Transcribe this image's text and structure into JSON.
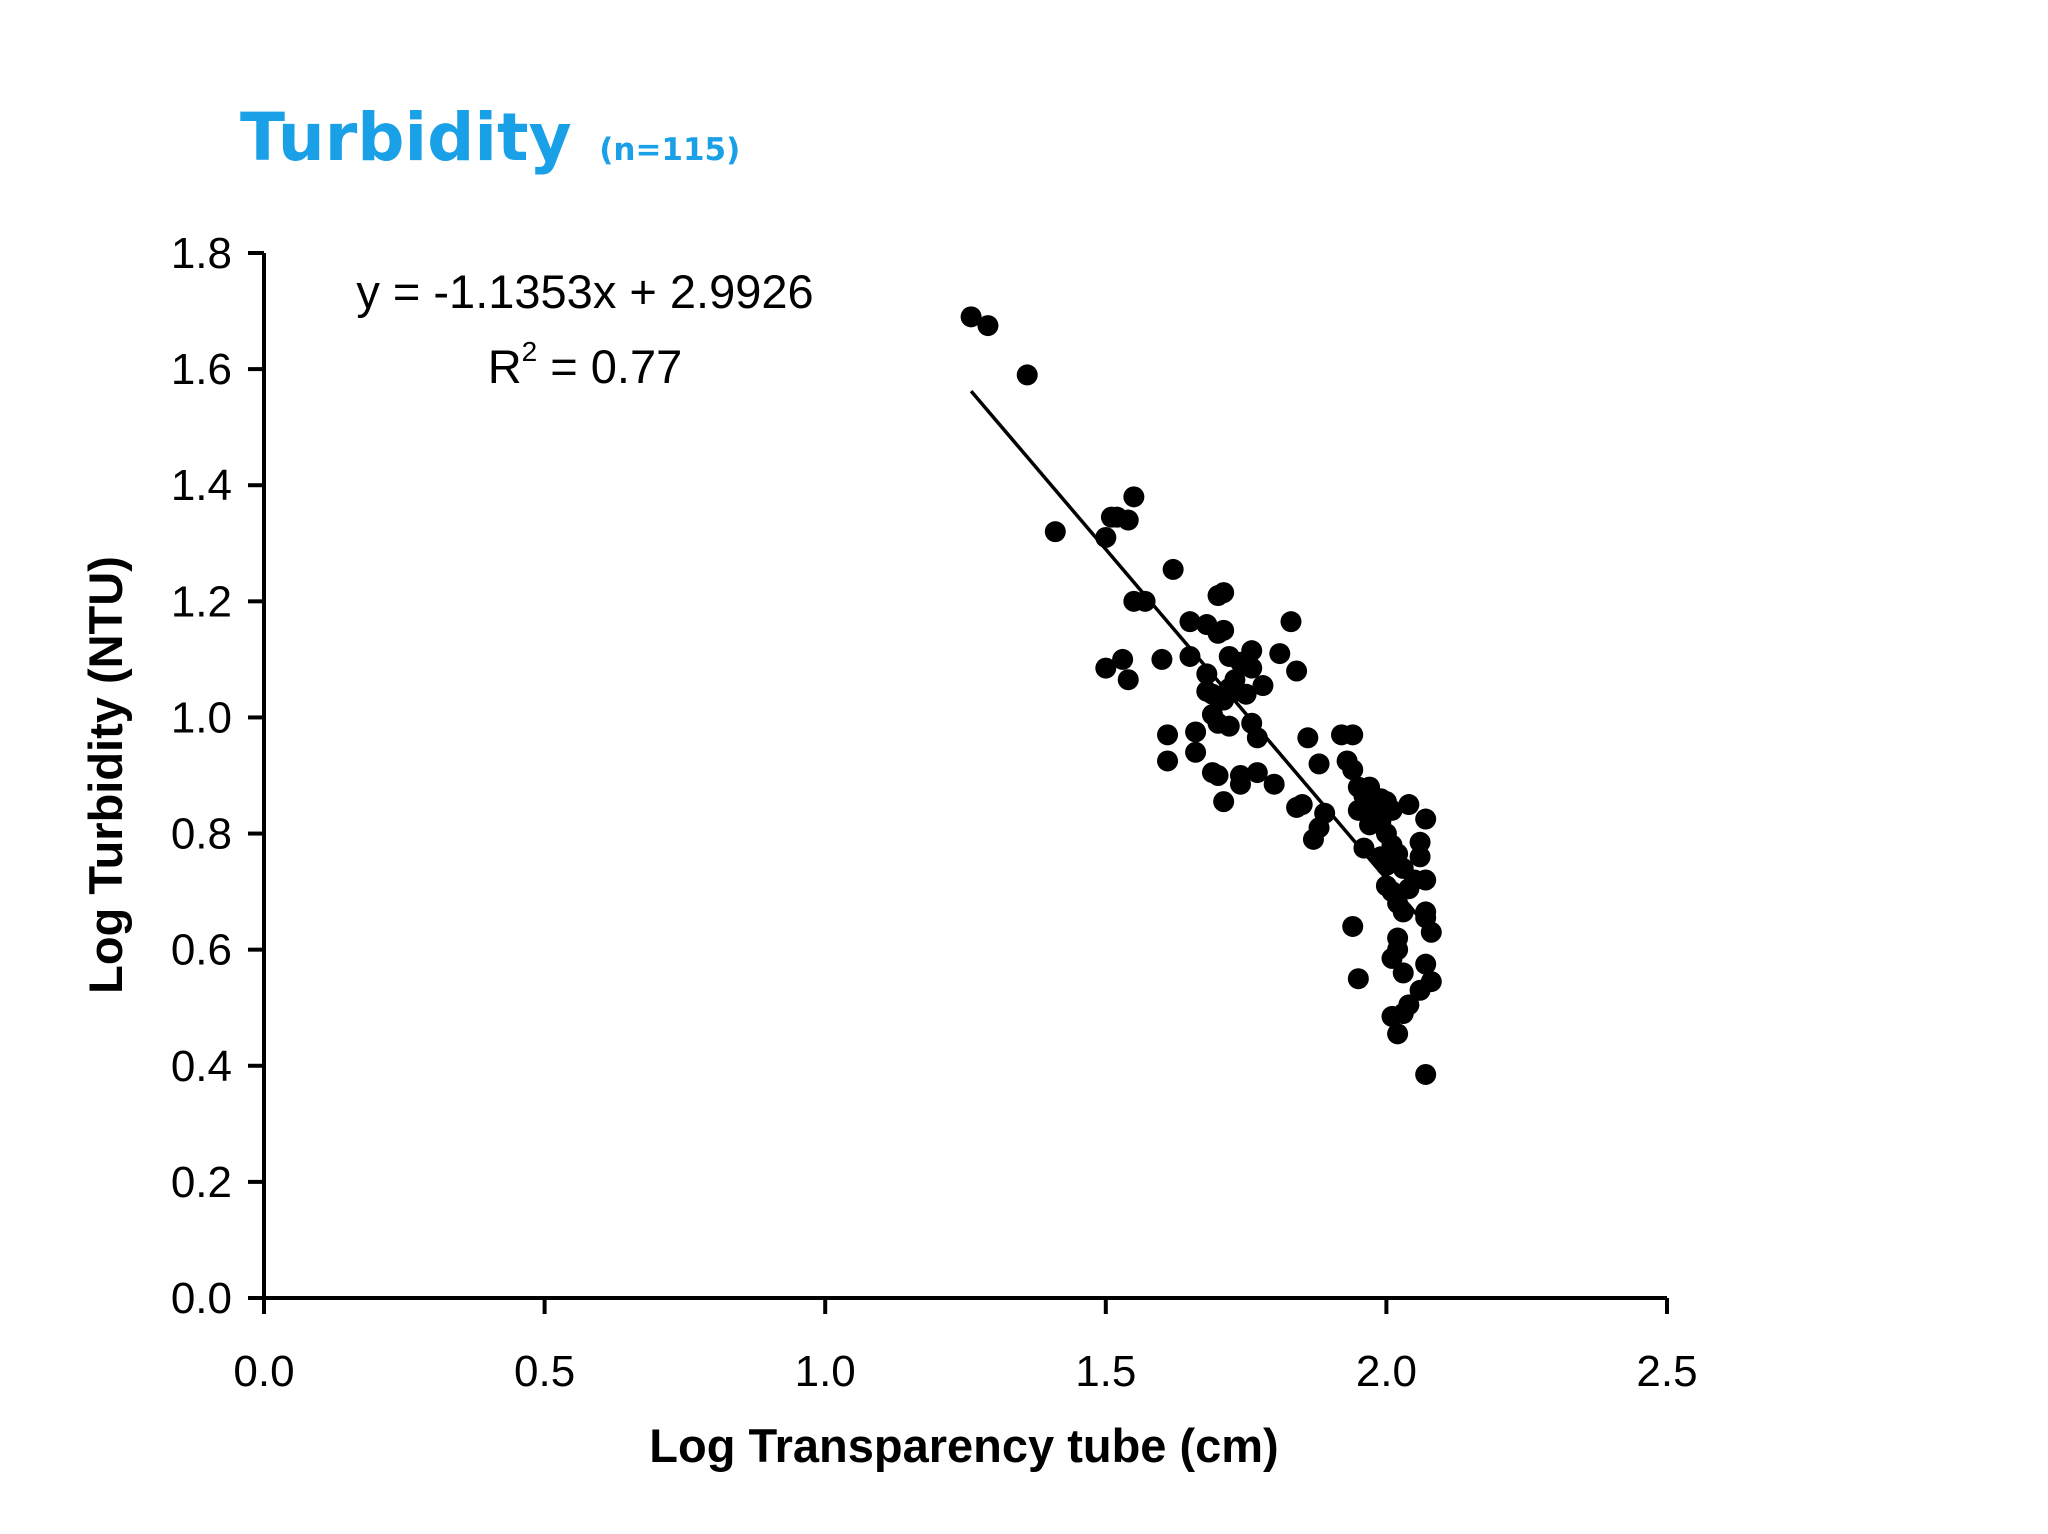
{
  "chart_data": {
    "type": "scatter",
    "title": "Turbidity",
    "subtitle": "(n=115)",
    "xlabel": "Log Transparency tube (cm)",
    "ylabel": "Log Turbidity (NTU)",
    "xlim": [
      0.0,
      2.5
    ],
    "ylim": [
      0.0,
      1.8
    ],
    "x_ticks": [
      "0.0",
      "0.5",
      "1.0",
      "1.5",
      "2.0",
      "2.5"
    ],
    "y_ticks": [
      "0.0",
      "0.2",
      "0.4",
      "0.6",
      "0.8",
      "1.0",
      "1.2",
      "1.4",
      "1.6",
      "1.8"
    ],
    "grid": false,
    "colors": {
      "title": "#1aa0e6",
      "points": "#000000"
    },
    "trendline": {
      "slope": -1.1353,
      "intercept": 2.9926,
      "x_range": [
        1.26,
        2.08
      ],
      "equation_text": "y = -1.1353x + 2.9926",
      "r2_prefix": "R",
      "r2_sup": "2",
      "r2_suffix": " = 0.77"
    },
    "points": [
      [
        1.26,
        1.69
      ],
      [
        1.29,
        1.675
      ],
      [
        1.36,
        1.59
      ],
      [
        1.41,
        1.32
      ],
      [
        1.5,
        1.31
      ],
      [
        1.51,
        1.345
      ],
      [
        1.52,
        1.345
      ],
      [
        1.54,
        1.34
      ],
      [
        1.55,
        1.38
      ],
      [
        1.55,
        1.2
      ],
      [
        1.57,
        1.2
      ],
      [
        1.62,
        1.255
      ],
      [
        1.5,
        1.085
      ],
      [
        1.53,
        1.1
      ],
      [
        1.54,
        1.065
      ],
      [
        1.6,
        1.1
      ],
      [
        1.61,
        0.97
      ],
      [
        1.61,
        0.925
      ],
      [
        1.65,
        1.165
      ],
      [
        1.65,
        1.105
      ],
      [
        1.66,
        0.975
      ],
      [
        1.66,
        0.94
      ],
      [
        1.68,
        1.16
      ],
      [
        1.68,
        1.075
      ],
      [
        1.68,
        1.045
      ],
      [
        1.69,
        1.04
      ],
      [
        1.69,
        1.005
      ],
      [
        1.69,
        0.905
      ],
      [
        1.7,
        1.21
      ],
      [
        1.7,
        1.145
      ],
      [
        1.7,
        0.9
      ],
      [
        1.7,
        0.99
      ],
      [
        1.71,
        1.215
      ],
      [
        1.71,
        1.15
      ],
      [
        1.71,
        1.03
      ],
      [
        1.71,
        0.855
      ],
      [
        1.72,
        1.105
      ],
      [
        1.72,
        1.05
      ],
      [
        1.72,
        0.985
      ],
      [
        1.73,
        1.065
      ],
      [
        1.73,
        1.045
      ],
      [
        1.74,
        1.095
      ],
      [
        1.74,
        0.9
      ],
      [
        1.74,
        0.885
      ],
      [
        1.75,
        1.04
      ],
      [
        1.76,
        1.115
      ],
      [
        1.76,
        1.085
      ],
      [
        1.76,
        0.99
      ],
      [
        1.77,
        0.965
      ],
      [
        1.77,
        0.905
      ],
      [
        1.78,
        1.055
      ],
      [
        1.8,
        0.885
      ],
      [
        1.81,
        1.11
      ],
      [
        1.83,
        1.165
      ],
      [
        1.84,
        1.08
      ],
      [
        1.84,
        0.845
      ],
      [
        1.85,
        0.85
      ],
      [
        1.86,
        0.965
      ],
      [
        1.87,
        0.79
      ],
      [
        1.88,
        0.92
      ],
      [
        1.88,
        0.81
      ],
      [
        1.89,
        0.835
      ],
      [
        1.92,
        0.97
      ],
      [
        1.93,
        0.925
      ],
      [
        1.94,
        0.97
      ],
      [
        1.94,
        0.91
      ],
      [
        1.95,
        0.88
      ],
      [
        1.95,
        0.84
      ],
      [
        1.94,
        0.64
      ],
      [
        1.95,
        0.55
      ],
      [
        1.96,
        0.865
      ],
      [
        1.96,
        0.775
      ],
      [
        1.97,
        0.88
      ],
      [
        1.97,
        0.84
      ],
      [
        1.97,
        0.815
      ],
      [
        1.98,
        0.835
      ],
      [
        1.98,
        0.83
      ],
      [
        1.99,
        0.86
      ],
      [
        1.99,
        0.82
      ],
      [
        1.99,
        0.76
      ],
      [
        2.0,
        0.855
      ],
      [
        2.0,
        0.84
      ],
      [
        2.0,
        0.8
      ],
      [
        2.0,
        0.745
      ],
      [
        2.0,
        0.71
      ],
      [
        2.01,
        0.84
      ],
      [
        2.01,
        0.78
      ],
      [
        2.01,
        0.75
      ],
      [
        2.01,
        0.7
      ],
      [
        2.01,
        0.585
      ],
      [
        2.01,
        0.485
      ],
      [
        2.02,
        0.765
      ],
      [
        2.02,
        0.68
      ],
      [
        2.02,
        0.62
      ],
      [
        2.02,
        0.6
      ],
      [
        2.02,
        0.455
      ],
      [
        2.03,
        0.74
      ],
      [
        2.03,
        0.665
      ],
      [
        2.03,
        0.56
      ],
      [
        2.03,
        0.49
      ],
      [
        2.04,
        0.85
      ],
      [
        2.04,
        0.705
      ],
      [
        2.04,
        0.505
      ],
      [
        2.05,
        0.72
      ],
      [
        2.06,
        0.785
      ],
      [
        2.06,
        0.76
      ],
      [
        2.06,
        0.53
      ],
      [
        2.07,
        0.825
      ],
      [
        2.07,
        0.72
      ],
      [
        2.07,
        0.665
      ],
      [
        2.07,
        0.655
      ],
      [
        2.07,
        0.575
      ],
      [
        2.07,
        0.385
      ],
      [
        2.08,
        0.545
      ],
      [
        2.08,
        0.63
      ]
    ]
  }
}
